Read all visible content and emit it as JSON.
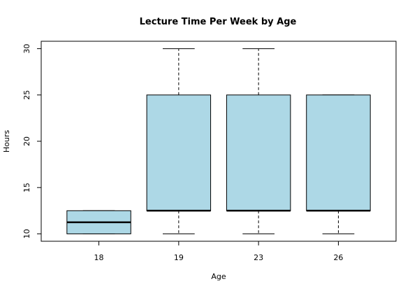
{
  "chart_data": {
    "type": "boxplot",
    "title": "Lecture Time Per Week by Age",
    "xlabel": "Age",
    "ylabel": "Hours",
    "categories": [
      "18",
      "19",
      "23",
      "26"
    ],
    "boxes": [
      {
        "category": "18",
        "whisker_low": 10,
        "q1": 10,
        "median": 11.25,
        "q3": 12.5,
        "whisker_high": 12.5
      },
      {
        "category": "19",
        "whisker_low": 10,
        "q1": 12.5,
        "median": 12.5,
        "q3": 25,
        "whisker_high": 30
      },
      {
        "category": "23",
        "whisker_low": 10,
        "q1": 12.5,
        "median": 12.5,
        "q3": 25,
        "whisker_high": 30
      },
      {
        "category": "26",
        "whisker_low": 10,
        "q1": 12.5,
        "median": 12.5,
        "q3": 25,
        "whisker_high": 25
      }
    ],
    "yticks": [
      10,
      15,
      20,
      25,
      30
    ],
    "ylim": [
      9.2,
      30.8
    ],
    "grid": false,
    "box_color": "#add8e6",
    "line_color": "#000000"
  }
}
